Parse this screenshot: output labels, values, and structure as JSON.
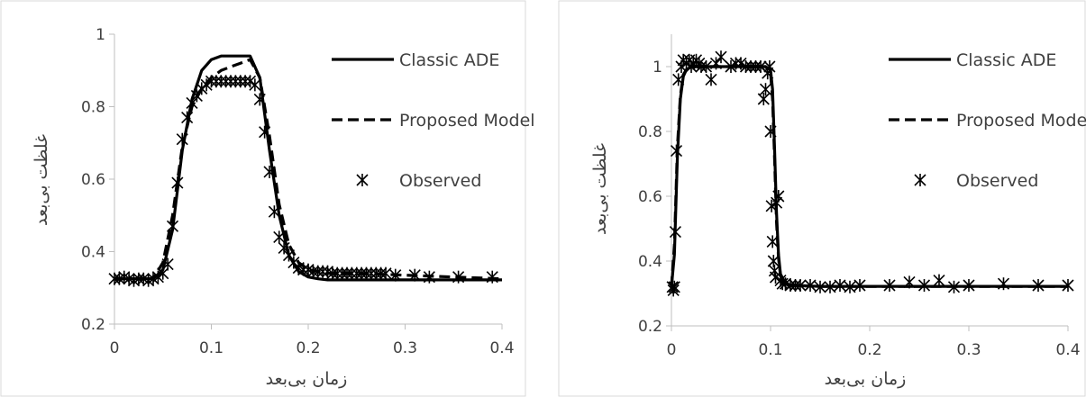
{
  "chart_data": [
    {
      "type": "line",
      "xlabel": "زمان بی‌بعد",
      "ylabel": "غلظت بی‌بعد",
      "xlim": [
        0,
        0.4
      ],
      "ylim": [
        0.2,
        1
      ],
      "xticks": [
        "0",
        "0.1",
        "0.2",
        "0.3",
        "0.4"
      ],
      "yticks": [
        "0.2",
        "0.4",
        "0.6",
        "0.8",
        "1"
      ],
      "grid": false,
      "legend": "top-right",
      "series": [
        {
          "name": "Classic ADE",
          "style": "solid",
          "x": [
            0,
            0.04,
            0.05,
            0.06,
            0.07,
            0.08,
            0.09,
            0.1,
            0.11,
            0.12,
            0.13,
            0.14,
            0.15,
            0.16,
            0.17,
            0.18,
            0.19,
            0.2,
            0.21,
            0.22,
            0.25,
            0.3,
            0.35,
            0.4
          ],
          "y": [
            0.325,
            0.325,
            0.35,
            0.46,
            0.68,
            0.82,
            0.9,
            0.93,
            0.94,
            0.94,
            0.94,
            0.94,
            0.88,
            0.68,
            0.5,
            0.39,
            0.345,
            0.33,
            0.325,
            0.322,
            0.322,
            0.322,
            0.322,
            0.322
          ]
        },
        {
          "name": "Proposed Model",
          "style": "dashed",
          "x": [
            0,
            0.04,
            0.05,
            0.06,
            0.07,
            0.08,
            0.09,
            0.1,
            0.11,
            0.12,
            0.13,
            0.14,
            0.15,
            0.16,
            0.17,
            0.18,
            0.19,
            0.2,
            0.22,
            0.25,
            0.3,
            0.35,
            0.4
          ],
          "y": [
            0.325,
            0.325,
            0.37,
            0.5,
            0.69,
            0.8,
            0.85,
            0.88,
            0.9,
            0.91,
            0.92,
            0.93,
            0.88,
            0.72,
            0.53,
            0.42,
            0.37,
            0.35,
            0.34,
            0.34,
            0.335,
            0.33,
            0.325
          ]
        },
        {
          "name": "Observed",
          "style": "marker",
          "x": [
            0,
            0.005,
            0.01,
            0.015,
            0.02,
            0.025,
            0.03,
            0.035,
            0.04,
            0.045,
            0.05,
            0.055,
            0.06,
            0.065,
            0.07,
            0.075,
            0.08,
            0.085,
            0.09,
            0.095,
            0.1,
            0.105,
            0.11,
            0.115,
            0.12,
            0.125,
            0.13,
            0.135,
            0.14,
            0.145,
            0.15,
            0.155,
            0.16,
            0.165,
            0.17,
            0.175,
            0.18,
            0.185,
            0.19,
            0.195,
            0.2,
            0.205,
            0.21,
            0.215,
            0.22,
            0.225,
            0.23,
            0.235,
            0.24,
            0.245,
            0.25,
            0.255,
            0.26,
            0.265,
            0.27,
            0.275,
            0.28,
            0.29,
            0.31,
            0.325,
            0.355,
            0.39
          ],
          "y": [
            0.325,
            0.325,
            0.33,
            0.325,
            0.32,
            0.325,
            0.325,
            0.32,
            0.325,
            0.33,
            0.34,
            0.365,
            0.47,
            0.59,
            0.71,
            0.77,
            0.81,
            0.83,
            0.85,
            0.86,
            0.87,
            0.87,
            0.87,
            0.87,
            0.87,
            0.87,
            0.87,
            0.87,
            0.87,
            0.86,
            0.82,
            0.73,
            0.62,
            0.51,
            0.44,
            0.41,
            0.39,
            0.37,
            0.355,
            0.35,
            0.35,
            0.345,
            0.345,
            0.345,
            0.345,
            0.34,
            0.34,
            0.34,
            0.34,
            0.34,
            0.34,
            0.34,
            0.34,
            0.34,
            0.34,
            0.34,
            0.34,
            0.335,
            0.335,
            0.33,
            0.33,
            0.33
          ]
        }
      ]
    },
    {
      "type": "line",
      "xlabel": "زمان بی‌بعد",
      "ylabel": "غلظت بی‌بعد",
      "xlim": [
        0,
        0.4
      ],
      "ylim": [
        0.2,
        1.1
      ],
      "xticks": [
        "0",
        "0.1",
        "0.2",
        "0.3",
        "0.4"
      ],
      "yticks": [
        "0.2",
        "0.4",
        "0.6",
        "0.8",
        "1"
      ],
      "grid": false,
      "legend": "top-right",
      "series": [
        {
          "name": "Classic ADE",
          "style": "solid",
          "x": [
            0,
            0.003,
            0.006,
            0.009,
            0.012,
            0.015,
            0.02,
            0.04,
            0.06,
            0.08,
            0.095,
            0.1,
            0.102,
            0.104,
            0.106,
            0.108,
            0.11,
            0.115,
            0.12,
            0.15,
            0.2,
            0.3,
            0.4
          ],
          "y": [
            0.32,
            0.42,
            0.72,
            0.9,
            0.97,
            0.99,
            1.0,
            1.0,
            1.0,
            1.0,
            1.0,
            0.99,
            0.93,
            0.75,
            0.55,
            0.42,
            0.36,
            0.33,
            0.325,
            0.322,
            0.322,
            0.322,
            0.322
          ]
        },
        {
          "name": "Proposed Model",
          "style": "dashed",
          "x": [
            0,
            0.003,
            0.006,
            0.009,
            0.012,
            0.015,
            0.02,
            0.04,
            0.06,
            0.08,
            0.095,
            0.1,
            0.102,
            0.104,
            0.106,
            0.108,
            0.11,
            0.115,
            0.12,
            0.15,
            0.2,
            0.3,
            0.4
          ],
          "y": [
            0.32,
            0.45,
            0.75,
            0.91,
            0.975,
            0.99,
            1.0,
            1.0,
            1.0,
            1.0,
            1.0,
            0.98,
            0.9,
            0.72,
            0.52,
            0.41,
            0.355,
            0.33,
            0.325,
            0.322,
            0.322,
            0.322,
            0.322
          ]
        },
        {
          "name": "Observed",
          "style": "marker",
          "x": [
            0.001,
            0.002,
            0.003,
            0.004,
            0.005,
            0.007,
            0.01,
            0.012,
            0.015,
            0.018,
            0.02,
            0.022,
            0.025,
            0.028,
            0.03,
            0.035,
            0.04,
            0.045,
            0.05,
            0.06,
            0.065,
            0.07,
            0.075,
            0.08,
            0.085,
            0.09,
            0.093,
            0.095,
            0.097,
            0.099,
            0.1,
            0.101,
            0.102,
            0.103,
            0.104,
            0.105,
            0.106,
            0.108,
            0.11,
            0.112,
            0.115,
            0.12,
            0.125,
            0.13,
            0.14,
            0.15,
            0.16,
            0.17,
            0.18,
            0.19,
            0.22,
            0.24,
            0.255,
            0.27,
            0.285,
            0.3,
            0.335,
            0.37,
            0.4
          ],
          "y": [
            0.32,
            0.31,
            0.32,
            0.49,
            0.74,
            0.96,
            1.0,
            1.02,
            1.01,
            1.02,
            1.0,
            1.01,
            1.02,
            1.01,
            1.0,
            1.0,
            0.96,
            1.01,
            1.03,
            1.0,
            1.01,
            1.01,
            1.0,
            1.0,
            1.0,
            1.0,
            0.9,
            0.93,
            0.98,
            1.0,
            0.8,
            0.57,
            0.46,
            0.4,
            0.37,
            0.35,
            0.58,
            0.6,
            0.34,
            0.33,
            0.33,
            0.325,
            0.325,
            0.325,
            0.325,
            0.32,
            0.32,
            0.325,
            0.32,
            0.325,
            0.325,
            0.335,
            0.325,
            0.34,
            0.32,
            0.325,
            0.33,
            0.325,
            0.325
          ]
        }
      ]
    }
  ]
}
